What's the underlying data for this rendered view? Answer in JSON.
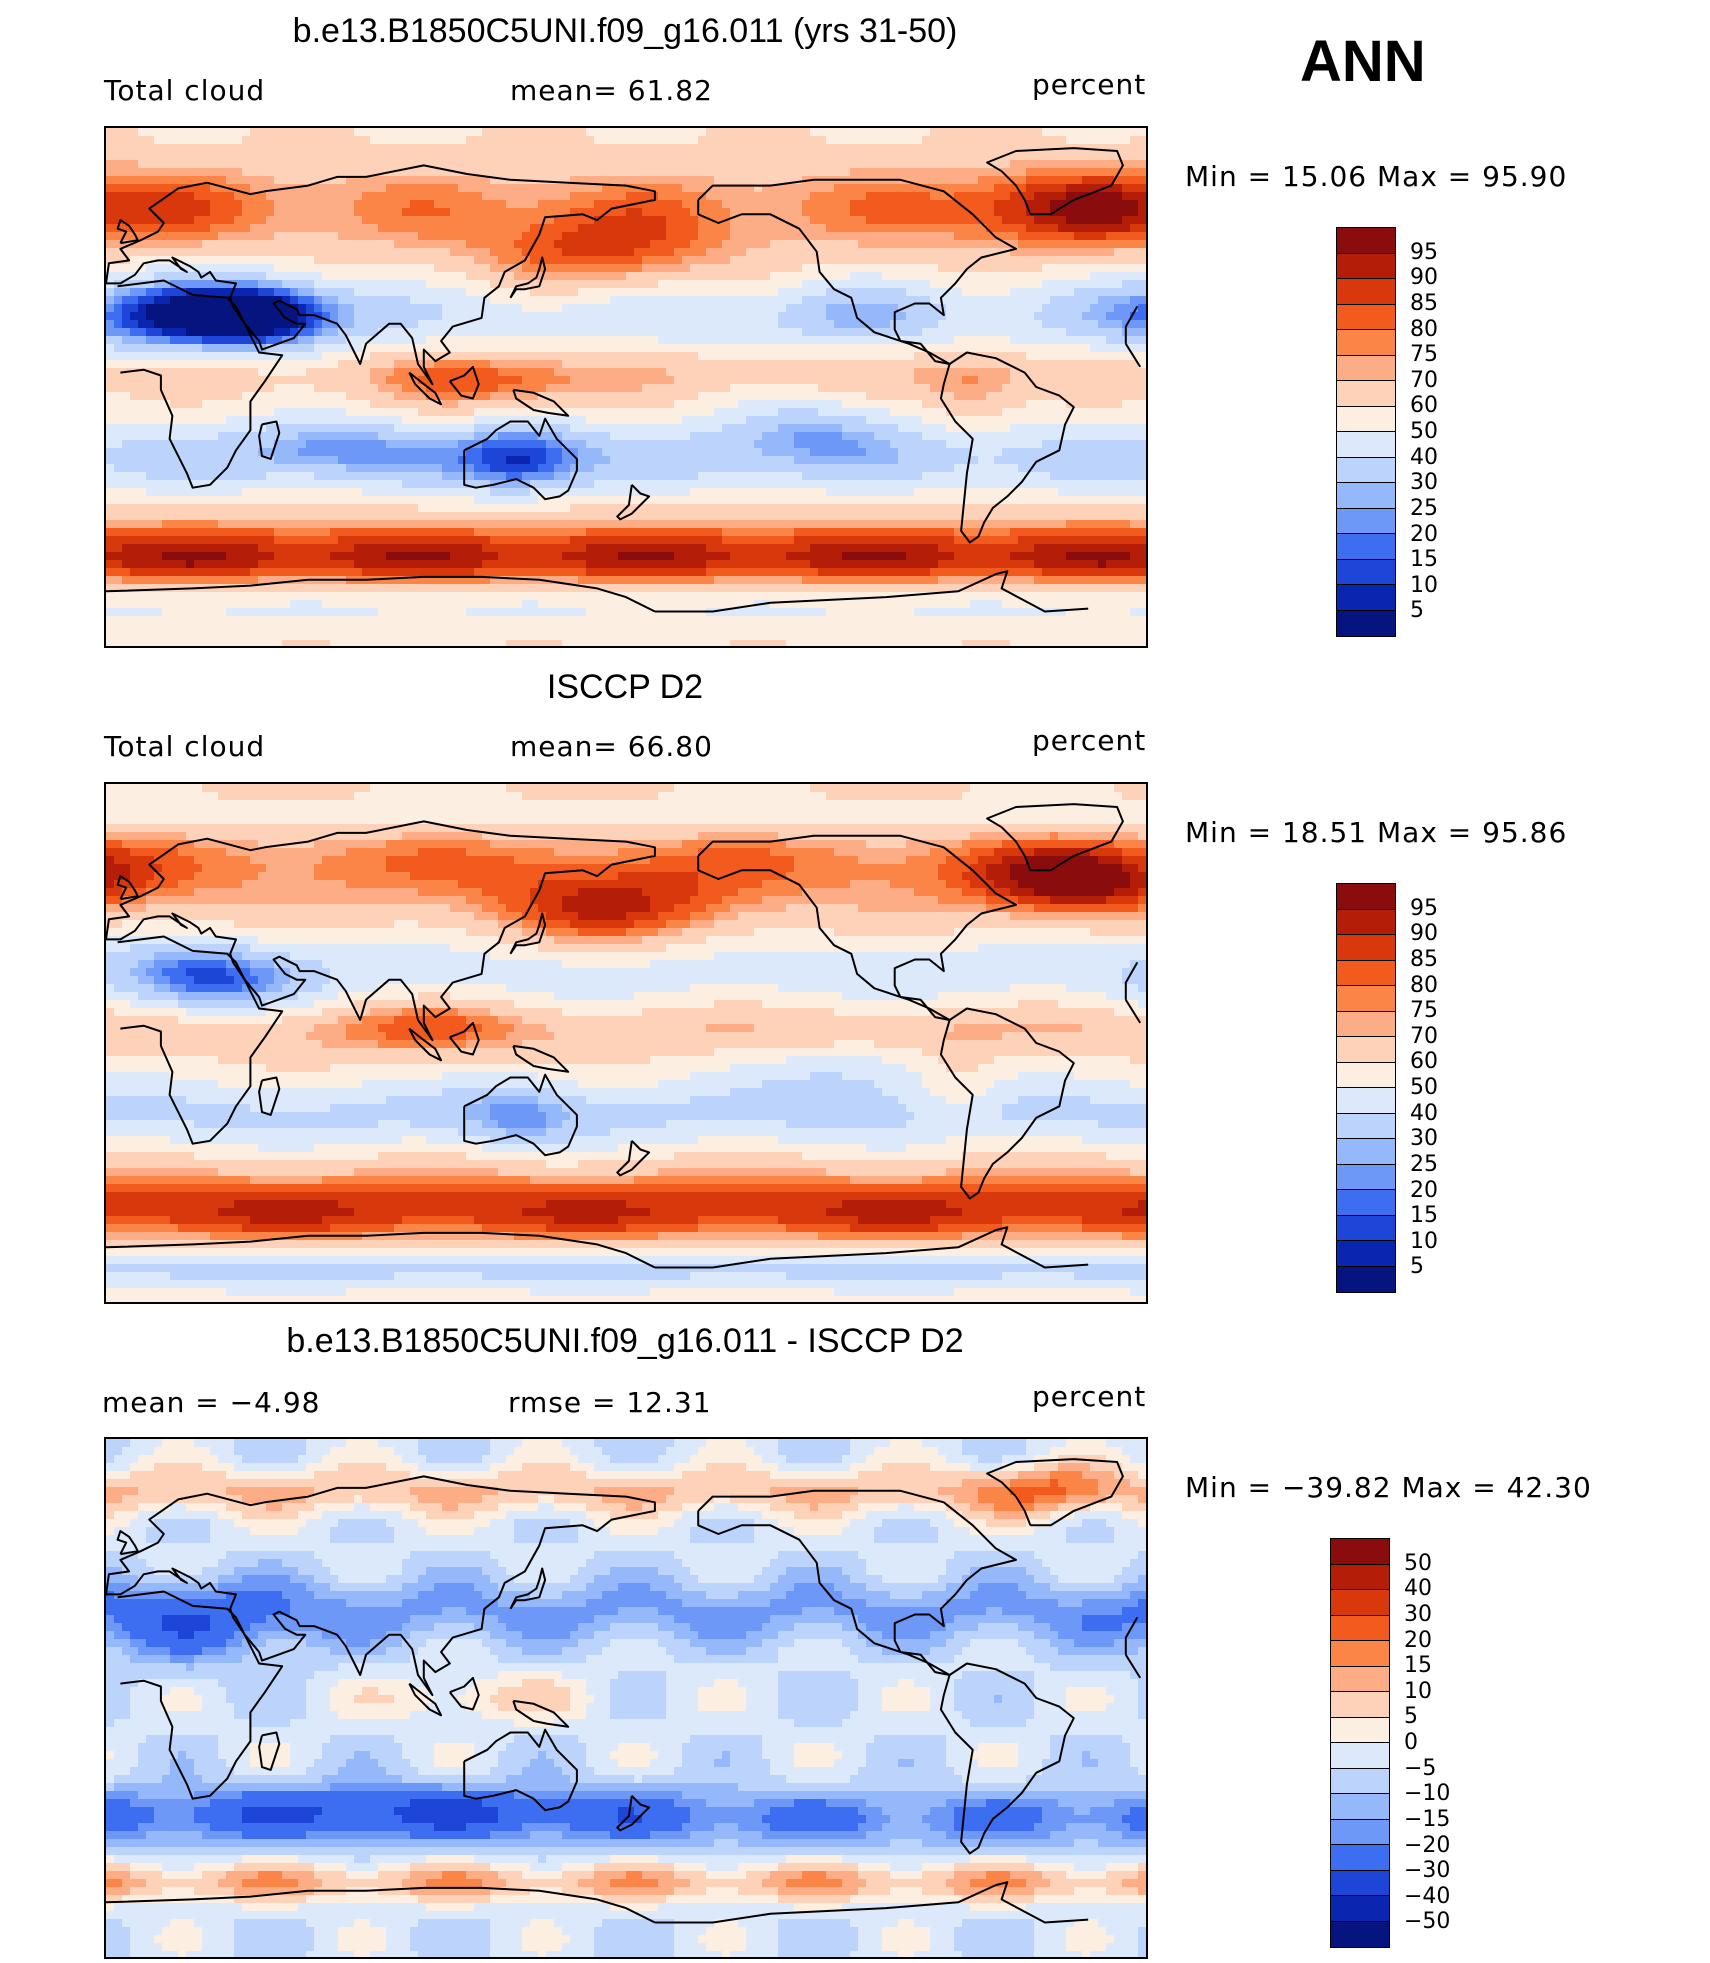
{
  "season": "ANN",
  "panels": [
    {
      "title": "b.e13.B1850C5UNI.f09_g16.011 (yrs 31-50)",
      "left_label": "Total cloud",
      "center_label": "mean=   61.82",
      "units": "percent",
      "minmax": "Min  =   15.06  Max  =   95.90",
      "colorbar_levels": [
        "95",
        "90",
        "85",
        "80",
        "75",
        "70",
        "60",
        "50",
        "40",
        "30",
        "25",
        "20",
        "15",
        "10",
        "5"
      ],
      "colorbar_colors": [
        "#8a0c0c",
        "#b41d08",
        "#d8380b",
        "#f25a1e",
        "#fb8447",
        "#fdad85",
        "#fdd2b8",
        "#fdeee2",
        "#dbe9fb",
        "#bcd4fb",
        "#95b8fb",
        "#6d98f8",
        "#3d6df0",
        "#1d46d8",
        "#0a25b0",
        "#061480"
      ],
      "field": "model",
      "mapname": "map-model"
    },
    {
      "title": "ISCCP D2",
      "left_label": "Total cloud",
      "center_label": "mean=   66.80",
      "units": "percent",
      "minmax": "Min  =   18.51  Max  =   95.86",
      "colorbar_levels": [
        "95",
        "90",
        "85",
        "80",
        "75",
        "70",
        "60",
        "50",
        "40",
        "30",
        "25",
        "20",
        "15",
        "10",
        "5"
      ],
      "colorbar_colors": [
        "#8a0c0c",
        "#b41d08",
        "#d8380b",
        "#f25a1e",
        "#fb8447",
        "#fdad85",
        "#fdd2b8",
        "#fdeee2",
        "#dbe9fb",
        "#bcd4fb",
        "#95b8fb",
        "#6d98f8",
        "#3d6df0",
        "#1d46d8",
        "#0a25b0",
        "#061480"
      ],
      "field": "obs",
      "mapname": "map-obs"
    },
    {
      "title": "b.e13.B1850C5UNI.f09_g16.011 - ISCCP D2",
      "left_label": "mean  =    −4.98",
      "center_label": "rmse  =    12.31",
      "units": "percent",
      "minmax": "Min  = −39.82  Max  =    42.30",
      "colorbar_levels": [
        "50",
        "40",
        "30",
        "20",
        "15",
        "10",
        "5",
        "0",
        "−5",
        "−10",
        "−15",
        "−20",
        "−30",
        "−40",
        "−50"
      ],
      "colorbar_colors": [
        "#8a0c0c",
        "#b41d08",
        "#d8380b",
        "#f25a1e",
        "#fb8447",
        "#fdad85",
        "#fdd2b8",
        "#fdeee2",
        "#dbe9fb",
        "#bcd4fb",
        "#95b8fb",
        "#6d98f8",
        "#3d6df0",
        "#1d46d8",
        "#0a25b0",
        "#061480"
      ],
      "field": "diff",
      "mapname": "map-diff"
    }
  ]
}
